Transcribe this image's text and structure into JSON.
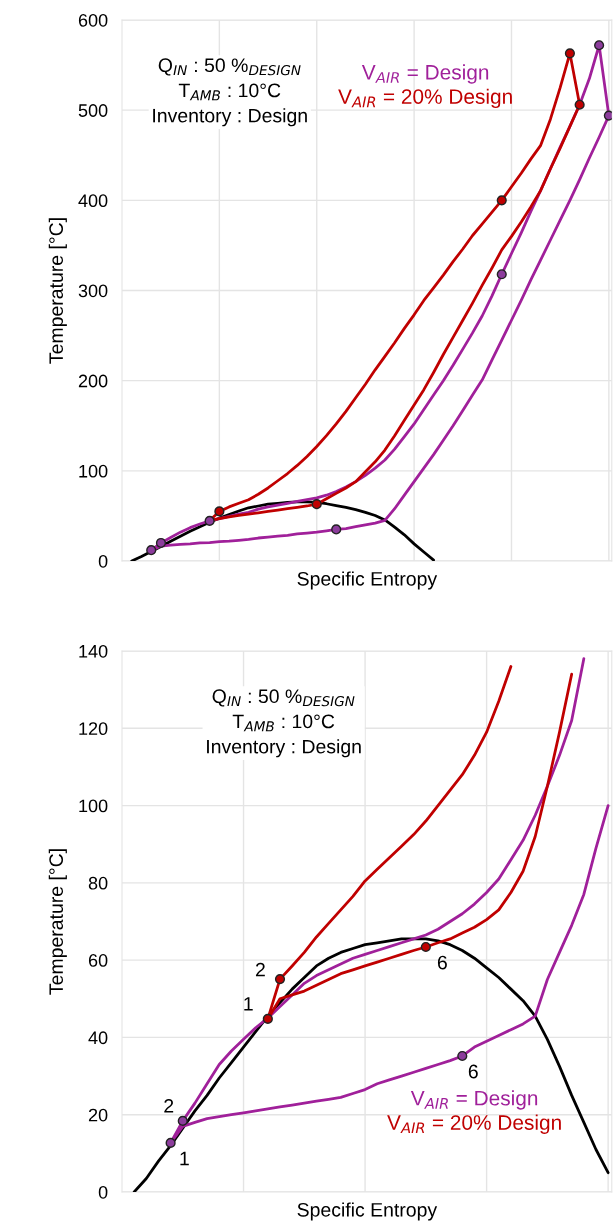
{
  "chart_data": [
    {
      "type": "line",
      "xlabel": "Specific Entropy",
      "ylabel": "Temperature [°C]",
      "categories": [
        null,
        null,
        null,
        null,
        null,
        null,
        null,
        null,
        null,
        null,
        null,
        null,
        null,
        null,
        null,
        null,
        null,
        null,
        null,
        null,
        null,
        null,
        null,
        null,
        null,
        null,
        null,
        null,
        null,
        null,
        null,
        null,
        null,
        null,
        null,
        null,
        null,
        null,
        null,
        null,
        null,
        null,
        null,
        null,
        null,
        null,
        null,
        null,
        null,
        null,
        null
      ],
      "ylim": [
        0,
        600
      ],
      "yticks": [
        0,
        100,
        200,
        300,
        400,
        500,
        600
      ],
      "grid": true,
      "annotations": [
        "Q$_{IN}$ : 50 %$_{DESIGN}$",
        "T$_{AMB}$ : 10°C",
        "Inventory : Design"
      ],
      "series": [
        {
          "color": "#000000",
          "values": [
            null,
            0,
            5,
            10.5,
            16,
            22,
            27.5,
            33,
            38,
            43,
            47.5,
            51.5,
            55.5,
            59,
            61,
            63,
            64,
            65,
            65.5,
            65.5,
            65,
            63.5,
            61.5,
            59.5,
            57,
            54,
            50.5,
            45.5,
            37.5,
            29,
            19,
            10,
            1,
            null,
            null,
            null,
            null,
            null,
            null,
            null,
            null,
            null,
            null,
            null,
            null,
            null,
            null,
            null,
            null,
            null,
            null
          ]
        },
        {
          "name": "V$_{AIR}$ = Design",
          "color": "#a0209a",
          "values": [
            null,
            null,
            null,
            12,
            20,
            26,
            32,
            37,
            41,
            44.5,
            47,
            49.5,
            52,
            54,
            57.5,
            60,
            62,
            64,
            66,
            68,
            70,
            73,
            77,
            82,
            88,
            95,
            103,
            112,
            124,
            138,
            152,
            168,
            184,
            200,
            217,
            235,
            253,
            272,
            294,
            318,
            341,
            364,
            388,
            411,
            435,
            459,
            482,
            506,
            535,
            572,
            494
          ]
        },
        {
          "color": "#a0209a",
          "values": [
            null,
            null,
            null,
            12,
            16.5,
            17.5,
            18.5,
            19,
            20,
            20.5,
            21.5,
            22,
            23,
            24,
            25.5,
            26.5,
            27.5,
            28.5,
            30,
            31,
            32,
            33.5,
            35,
            36,
            38,
            40,
            42,
            45,
            58,
            73,
            88,
            103,
            118,
            134,
            150,
            167,
            184,
            201,
            223,
            245,
            267,
            289,
            312,
            334,
            356,
            378,
            400,
            423,
            447,
            470,
            494
          ]
        },
        {
          "name": "V$_{AIR}$ = 20% Design",
          "color": "#c00000",
          "values": [
            null,
            null,
            null,
            null,
            null,
            null,
            null,
            null,
            null,
            45,
            55,
            60,
            64,
            68,
            74,
            81,
            89,
            97,
            106,
            116,
            127,
            139,
            152,
            166,
            181,
            196,
            212,
            227,
            242,
            258,
            273,
            289,
            303,
            317,
            332,
            346,
            361,
            374,
            387,
            400,
            415,
            430,
            446,
            461,
            490,
            525,
            563,
            506,
            null,
            null,
            null
          ]
        },
        {
          "color": "#c00000",
          "values": [
            null,
            null,
            null,
            null,
            null,
            null,
            null,
            null,
            null,
            45,
            47,
            49,
            50.5,
            52,
            53.5,
            55,
            56.5,
            58,
            59.5,
            61,
            63,
            69,
            75,
            81,
            88,
            99,
            110,
            123,
            139,
            156,
            173,
            190,
            209,
            229,
            248,
            267,
            286,
            306,
            325,
            345,
            360,
            376,
            393,
            411,
            435,
            458,
            482,
            506,
            null,
            null,
            null
          ]
        },
        {
          "type": "scatter",
          "color": "#8c3c9c",
          "values": [
            null,
            null,
            null,
            12,
            20,
            null,
            null,
            null,
            null,
            44.5,
            null,
            null,
            null,
            null,
            null,
            null,
            null,
            null,
            null,
            null,
            null,
            null,
            35,
            null,
            null,
            null,
            null,
            null,
            null,
            null,
            null,
            null,
            null,
            null,
            null,
            null,
            null,
            null,
            null,
            318,
            null,
            null,
            null,
            null,
            null,
            null,
            null,
            null,
            null,
            572,
            494
          ]
        },
        {
          "type": "scatter",
          "color": "#c00000",
          "values": [
            null,
            null,
            null,
            null,
            null,
            null,
            null,
            null,
            null,
            null,
            55,
            null,
            null,
            null,
            null,
            null,
            null,
            null,
            null,
            null,
            63,
            null,
            null,
            null,
            null,
            null,
            null,
            null,
            null,
            null,
            null,
            null,
            null,
            null,
            null,
            null,
            null,
            null,
            null,
            400,
            null,
            null,
            null,
            null,
            null,
            null,
            563,
            506,
            null,
            null,
            null
          ]
        }
      ]
    },
    {
      "type": "line",
      "xlabel": "Specific Entropy",
      "ylabel": "Temperature [°C]",
      "categories": [
        null,
        null,
        null,
        null,
        null,
        null,
        null,
        null,
        null,
        null,
        null,
        null,
        null,
        null,
        null,
        null,
        null,
        null,
        null,
        null,
        null,
        null,
        null,
        null,
        null,
        null,
        null,
        null,
        null,
        null,
        null,
        null,
        null,
        null,
        null,
        null,
        null,
        null,
        null,
        null,
        null
      ],
      "ylim": [
        0,
        140
      ],
      "yticks": [
        0,
        20,
        40,
        60,
        80,
        100,
        120,
        140
      ],
      "grid": true,
      "annotations": [
        "Q$_{IN}$ : 50 %$_{DESIGN}$",
        "T$_{AMB}$ : 10°C",
        "Inventory : Design",
        "1",
        "2",
        "6",
        "1",
        "2",
        "6"
      ],
      "series": [
        {
          "color": "#000000",
          "values": [
            null,
            0,
            3.5,
            8,
            12,
            16.5,
            21,
            25,
            29.5,
            33.5,
            37.5,
            41.5,
            45.5,
            49,
            52.5,
            55.5,
            58.5,
            60.5,
            62,
            63,
            64,
            64.5,
            65,
            65.5,
            65.5,
            65.5,
            65,
            64,
            62.5,
            60.5,
            58,
            55.5,
            52.5,
            49.5,
            45.5,
            39.5,
            32.5,
            25,
            18,
            11,
            5
          ]
        },
        {
          "name": "V$_{AIR}$ = Design",
          "color": "#a0209a",
          "values": [
            null,
            null,
            null,
            null,
            12.7,
            18.4,
            23,
            28,
            33,
            36.5,
            39.5,
            42.5,
            45,
            48,
            51,
            54,
            56,
            57.5,
            59,
            60.5,
            61.5,
            62.5,
            63.5,
            64.5,
            65.5,
            66.5,
            68,
            70,
            72,
            74.5,
            77.5,
            81,
            86,
            91,
            97.5,
            105,
            113,
            122,
            138,
            null,
            null
          ]
        },
        {
          "color": "#a0209a",
          "values": [
            null,
            null,
            null,
            null,
            12.7,
            17,
            18,
            19,
            19.5,
            20,
            20.5,
            21,
            21.5,
            22,
            22.5,
            23,
            23.5,
            24,
            24.5,
            25.5,
            26.5,
            28,
            29,
            30,
            31,
            32,
            33,
            34,
            35.2,
            37.5,
            39,
            40.5,
            42,
            43.5,
            45.5,
            55,
            62,
            69,
            77,
            89,
            100
          ]
        },
        {
          "name": "V$_{AIR}$ = 20% Design",
          "color": "#c00000",
          "values": [
            null,
            null,
            null,
            null,
            null,
            null,
            null,
            null,
            null,
            null,
            null,
            null,
            44.8,
            55.1,
            58.5,
            62,
            66,
            69.5,
            73,
            76.5,
            80.5,
            83.5,
            86.5,
            89.5,
            92.5,
            96,
            100,
            104,
            108,
            113,
            119,
            127,
            136,
            null,
            null,
            null,
            null,
            null,
            null,
            null,
            null
          ]
        },
        {
          "color": "#c00000",
          "values": [
            null,
            null,
            null,
            null,
            null,
            null,
            null,
            null,
            null,
            null,
            null,
            null,
            44.8,
            50,
            51,
            52,
            53.5,
            55,
            56.5,
            57.5,
            58.5,
            59.5,
            60.5,
            61.5,
            62.5,
            63.4,
            64.5,
            65.5,
            67,
            68.5,
            70.5,
            73,
            77.5,
            83,
            92,
            105,
            119,
            134,
            null,
            null,
            null
          ]
        },
        {
          "type": "scatter",
          "color": "#8c3c9c",
          "values": [
            null,
            null,
            null,
            null,
            12.7,
            18.4,
            null,
            null,
            null,
            null,
            null,
            null,
            null,
            null,
            null,
            null,
            null,
            null,
            null,
            null,
            null,
            null,
            null,
            null,
            null,
            null,
            null,
            null,
            35.2,
            null,
            null,
            null,
            null,
            null,
            null,
            null,
            null,
            null,
            null,
            null,
            null
          ]
        },
        {
          "type": "scatter",
          "color": "#c00000",
          "values": [
            null,
            null,
            null,
            null,
            null,
            null,
            null,
            null,
            null,
            null,
            null,
            null,
            44.8,
            55.1,
            null,
            null,
            null,
            null,
            null,
            null,
            null,
            null,
            null,
            null,
            null,
            63.4,
            null,
            null,
            null,
            null,
            null,
            null,
            null,
            null,
            null,
            null,
            null,
            null,
            null,
            null,
            null
          ]
        }
      ]
    }
  ]
}
